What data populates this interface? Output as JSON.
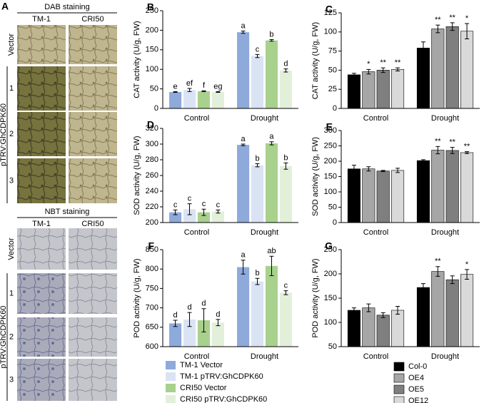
{
  "panel_a": {
    "label": "A",
    "side_label": "pTRV:GhCDPK60",
    "dab": {
      "title": "DAB staining",
      "columns": [
        "TM-1",
        "CRI50"
      ],
      "rows": [
        "Vector",
        "1",
        "2",
        "3"
      ]
    },
    "nbt": {
      "title": "NBT staining",
      "columns": [
        "TM-1",
        "CRI50"
      ],
      "rows": [
        "Vector",
        "1",
        "2",
        "3"
      ]
    }
  },
  "chart_data": [
    {
      "type": "bar",
      "panel": "B",
      "ylabel": "CAT activity (U/g, FW)",
      "categories": [
        "Control",
        "Drought"
      ],
      "ylim": [
        0,
        250
      ],
      "yticks": [
        0,
        50,
        100,
        150,
        200,
        250
      ],
      "series": [
        {
          "name": "TM-1 Vector",
          "color": "#8eaadb",
          "values": [
            42,
            195
          ],
          "errors": [
            1,
            3
          ],
          "annotations": [
            "e",
            "a"
          ]
        },
        {
          "name": "TM-1 pTRV:GhCDPK60",
          "color": "#dae3f3",
          "values": [
            47,
            134
          ],
          "errors": [
            4,
            4
          ],
          "annotations": [
            "ef",
            "c"
          ]
        },
        {
          "name": "CRI50 Vector",
          "color": "#a9d18e",
          "values": [
            44,
            174
          ],
          "errors": [
            1,
            2
          ],
          "annotations": [
            "f",
            "b"
          ]
        },
        {
          "name": "CRI50 pTRV:GhCDPK60",
          "color": "#e2f0d9",
          "values": [
            42,
            97
          ],
          "errors": [
            1,
            4
          ],
          "annotations": [
            "eg",
            "d"
          ]
        }
      ]
    },
    {
      "type": "bar",
      "panel": "C",
      "ylabel": "CAT activity (U/g, FW)",
      "categories": [
        "Control",
        "Drought"
      ],
      "ylim": [
        0,
        125
      ],
      "yticks": [
        0,
        25,
        50,
        75,
        100,
        125
      ],
      "series": [
        {
          "name": "Col-0",
          "color": "#000000",
          "values": [
            44,
            79
          ],
          "errors": [
            2,
            8
          ],
          "annotations": [
            null,
            null
          ]
        },
        {
          "name": "OE4",
          "color": "#a6a6a6",
          "values": [
            48,
            104
          ],
          "errors": [
            3,
            5
          ],
          "annotations": [
            "*",
            "**"
          ]
        },
        {
          "name": "OE5",
          "color": "#7f7f7f",
          "values": [
            50,
            107
          ],
          "errors": [
            3,
            5
          ],
          "annotations": [
            "**",
            "**"
          ]
        },
        {
          "name": "OE12",
          "color": "#d9d9d9",
          "values": [
            51,
            101
          ],
          "errors": [
            2,
            10
          ],
          "annotations": [
            "**",
            "*"
          ]
        }
      ]
    },
    {
      "type": "bar",
      "panel": "D",
      "ylabel": "SOD activity (U/g, FW)",
      "categories": [
        "Control",
        "Drought"
      ],
      "ylim": [
        200,
        320
      ],
      "yticks": [
        200,
        220,
        240,
        260,
        280,
        300,
        320
      ],
      "series": [
        {
          "color": "#8eaadb",
          "values": [
            213,
            299
          ],
          "errors": [
            3,
            1
          ],
          "annotations": [
            "c",
            "a"
          ]
        },
        {
          "color": "#dae3f3",
          "values": [
            217,
            273
          ],
          "errors": [
            7,
            2
          ],
          "annotations": [
            "c",
            "b"
          ]
        },
        {
          "color": "#a9d18e",
          "values": [
            213,
            301
          ],
          "errors": [
            4,
            2
          ],
          "annotations": [
            "c",
            "a"
          ]
        },
        {
          "color": "#e2f0d9",
          "values": [
            214,
            272
          ],
          "errors": [
            2,
            4
          ],
          "annotations": [
            "c",
            "b"
          ]
        }
      ]
    },
    {
      "type": "bar",
      "panel": "E",
      "ylabel": "SOD activity (U/g, FW)",
      "categories": [
        "Control",
        "Drought"
      ],
      "ylim": [
        0,
        300
      ],
      "yticks": [
        0,
        50,
        100,
        150,
        200,
        250,
        300
      ],
      "series": [
        {
          "color": "#000000",
          "values": [
            175,
            202
          ],
          "errors": [
            12,
            3
          ],
          "annotations": [
            null,
            null
          ]
        },
        {
          "color": "#a6a6a6",
          "values": [
            175,
            236
          ],
          "errors": [
            7,
            12
          ],
          "annotations": [
            null,
            "**"
          ]
        },
        {
          "color": "#7f7f7f",
          "values": [
            168,
            235
          ],
          "errors": [
            2,
            10
          ],
          "annotations": [
            null,
            "**"
          ]
        },
        {
          "color": "#d9d9d9",
          "values": [
            170,
            228
          ],
          "errors": [
            7,
            3
          ],
          "annotations": [
            null,
            "**"
          ]
        }
      ]
    },
    {
      "type": "bar",
      "panel": "F",
      "ylabel": "POD activity (U/g, FW)",
      "categories": [
        "Control",
        "Drought"
      ],
      "ylim": [
        600,
        850
      ],
      "yticks": [
        600,
        650,
        700,
        750,
        800,
        850
      ],
      "series": [
        {
          "color": "#8eaadb",
          "values": [
            660,
            805
          ],
          "errors": [
            8,
            18
          ],
          "annotations": [
            "d",
            "a"
          ]
        },
        {
          "color": "#dae3f3",
          "values": [
            670,
            768
          ],
          "errors": [
            18,
            8
          ],
          "annotations": [
            "d",
            "b"
          ]
        },
        {
          "color": "#a9d18e",
          "values": [
            668,
            808
          ],
          "errors": [
            30,
            25
          ],
          "annotations": [
            "d",
            "ab"
          ]
        },
        {
          "color": "#e2f0d9",
          "values": [
            662,
            739
          ],
          "errors": [
            8,
            5
          ],
          "annotations": [
            "d",
            "c"
          ]
        }
      ]
    },
    {
      "type": "bar",
      "panel": "G",
      "ylabel": "POD activity (U/g, FW)",
      "categories": [
        "Control",
        "Drought"
      ],
      "ylim": [
        50,
        250
      ],
      "yticks": [
        50,
        100,
        150,
        200,
        250
      ],
      "series": [
        {
          "color": "#000000",
          "values": [
            125,
            172
          ],
          "errors": [
            5,
            8
          ],
          "annotations": [
            null,
            null
          ]
        },
        {
          "color": "#a6a6a6",
          "values": [
            130,
            205
          ],
          "errors": [
            8,
            10
          ],
          "annotations": [
            null,
            "**"
          ]
        },
        {
          "color": "#7f7f7f",
          "values": [
            115,
            188
          ],
          "errors": [
            5,
            8
          ],
          "annotations": [
            null,
            null
          ]
        },
        {
          "color": "#d9d9d9",
          "values": [
            125,
            199
          ],
          "errors": [
            8,
            10
          ],
          "annotations": [
            null,
            "*"
          ]
        }
      ]
    }
  ]
}
